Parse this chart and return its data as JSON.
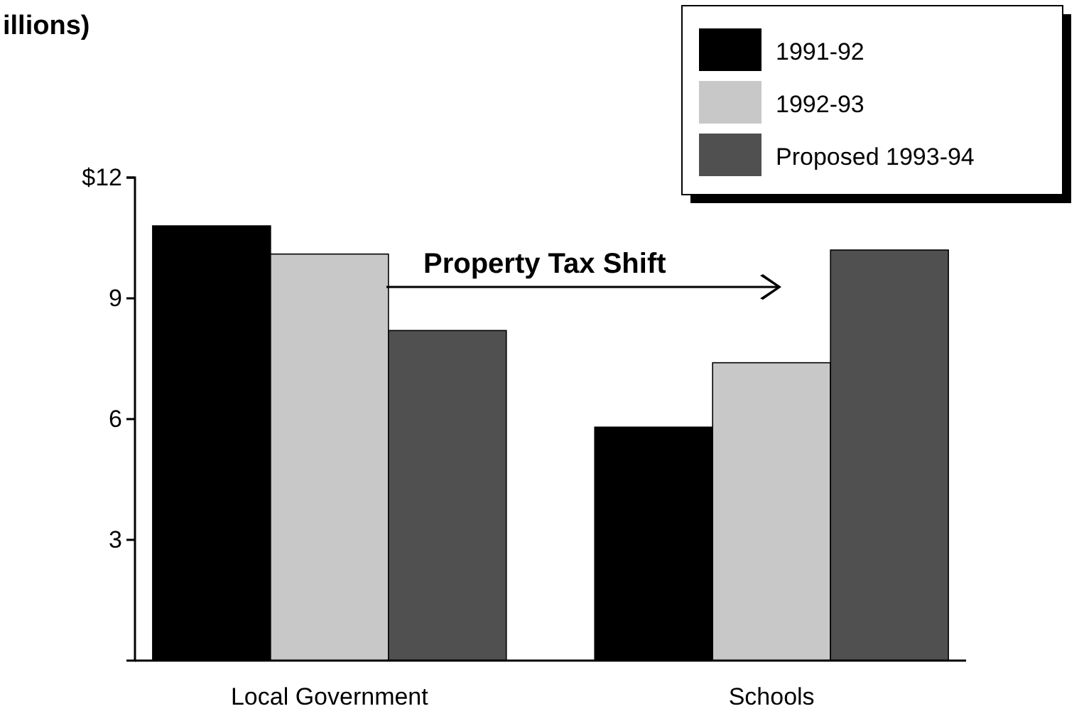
{
  "chart_data": {
    "type": "bar",
    "title": "illions)",
    "categories": [
      "Local Government",
      "Schools"
    ],
    "series": [
      {
        "name": "1991-92",
        "color": "#000000",
        "values": [
          10.8,
          5.8
        ]
      },
      {
        "name": "1992-93",
        "color": "#c8c8c8",
        "values": [
          10.1,
          7.4
        ]
      },
      {
        "name": "Proposed 1993-94",
        "color": "#505050",
        "values": [
          8.2,
          10.2
        ]
      }
    ],
    "ylim": [
      0,
      12
    ],
    "yticks": [
      3,
      6,
      9,
      {
        "value": 12,
        "label": "$12"
      }
    ],
    "annotations": [
      "Property Tax Shift"
    ],
    "grid": false,
    "legend": "top right"
  }
}
